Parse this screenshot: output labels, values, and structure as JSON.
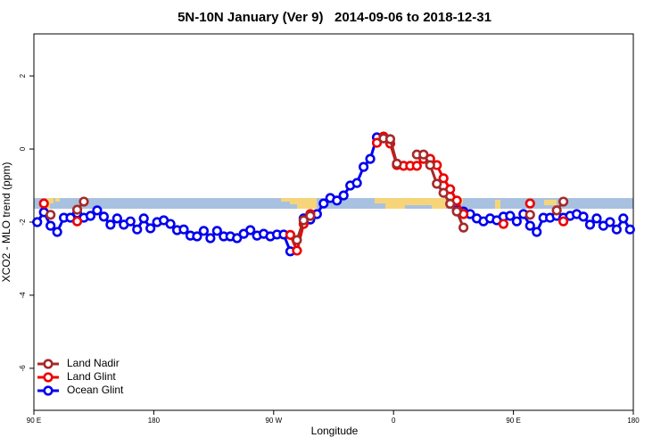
{
  "chart_data": {
    "type": "line",
    "title": "5N-10N January (Ver 9)   2014-09-06 to 2018-12-31",
    "xlabel": "Longitude",
    "ylabel": "XCO2 - MLO trend (ppm)",
    "xlim": [
      90,
      540
    ],
    "ylim": [
      -7.15,
      3.15
    ],
    "xticks": [
      {
        "value": 90,
        "label": "90 E"
      },
      180,
      {
        "value": 270,
        "label": "90 W"
      },
      {
        "value": 360,
        "label": "0"
      },
      {
        "value": 450,
        "label": "90 E"
      },
      {
        "value": 540,
        "label": "180"
      }
    ],
    "yticks": [
      -6,
      -4,
      -2,
      0,
      2
    ],
    "legend": "bottom-left",
    "x": [
      92.5,
      97.5,
      102.5,
      107.5,
      112.5,
      117.5,
      122.5,
      127.5,
      132.5,
      137.5,
      142.5,
      147.5,
      152.5,
      157.5,
      162.5,
      167.5,
      172.5,
      177.5,
      182.5,
      187.5,
      192.5,
      197.5,
      202.5,
      207.5,
      212.5,
      217.5,
      222.5,
      227.5,
      232.5,
      237.5,
      242.5,
      247.5,
      252.5,
      257.5,
      262.5,
      267.5,
      272.5,
      277.5,
      282.5,
      287.5,
      292.5,
      297.5,
      302.5,
      307.5,
      312.5,
      317.5,
      322.5,
      327.5,
      332.5,
      337.5,
      342.5,
      347.5,
      352.5,
      357.5,
      362.5,
      367.5,
      372.5,
      377.5,
      382.5,
      387.5,
      392.5,
      397.5,
      402.5,
      407.5,
      412.5,
      417.5,
      422.5,
      427.5,
      432.5,
      437.5,
      442.5,
      447.5,
      452.5,
      457.5,
      462.5,
      467.5,
      472.5,
      477.5,
      482.5,
      487.5,
      492.5,
      497.5,
      502.5,
      507.5,
      512.5,
      517.5,
      522.5,
      527.5,
      532.5,
      537.5
    ],
    "series": [
      {
        "name": "Ocean Glint",
        "color": "#0000ee",
        "values": [
          -2.0,
          -1.73,
          -2.1,
          -2.27,
          -1.88,
          -1.88,
          -1.76,
          -1.88,
          -1.83,
          -1.68,
          -1.85,
          -2.07,
          -1.9,
          -2.07,
          -1.98,
          -2.2,
          -1.9,
          -2.17,
          -2.0,
          -1.95,
          -2.05,
          -2.22,
          -2.2,
          -2.37,
          -2.39,
          -2.24,
          -2.44,
          -2.24,
          -2.39,
          -2.39,
          -2.44,
          -2.32,
          -2.22,
          -2.37,
          -2.32,
          -2.39,
          -2.34,
          -2.34,
          -2.8,
          null,
          -1.9,
          -1.93,
          -1.78,
          -1.49,
          -1.34,
          -1.41,
          -1.27,
          -1.0,
          -0.93,
          -0.49,
          -0.27,
          0.32,
          null,
          null,
          null,
          null,
          null,
          null,
          null,
          null,
          null,
          null,
          null,
          -1.68,
          -1.71,
          -1.78,
          -1.9,
          -1.98,
          -1.9,
          -1.95,
          -1.85,
          -1.83,
          -1.98,
          -1.78,
          -2.1,
          -2.27,
          -1.88,
          -1.88,
          -1.83,
          -1.88,
          -1.83,
          -1.78,
          -1.85,
          -2.07,
          -1.9,
          -2.1,
          -2.0,
          -2.2,
          -1.9,
          -2.2
        ]
      },
      {
        "name": "Land Glint",
        "color": "#ee0000",
        "values": [
          null,
          -1.49,
          null,
          null,
          null,
          null,
          -1.98,
          null,
          null,
          null,
          null,
          null,
          null,
          null,
          null,
          null,
          null,
          null,
          null,
          null,
          null,
          null,
          null,
          null,
          null,
          null,
          null,
          null,
          null,
          null,
          null,
          null,
          null,
          null,
          null,
          null,
          null,
          null,
          -2.35,
          -2.78,
          -2.05,
          -1.78,
          null,
          null,
          null,
          null,
          null,
          null,
          null,
          null,
          null,
          0.17,
          0.34,
          0.15,
          -0.44,
          -0.46,
          -0.46,
          -0.46,
          -0.27,
          -0.27,
          -0.44,
          -0.8,
          -1.1,
          -1.41,
          -1.78,
          null,
          null,
          null,
          null,
          null,
          -2.05,
          null,
          null,
          null,
          -1.49,
          null,
          null,
          null,
          null,
          -1.98,
          null,
          null,
          null,
          null,
          null,
          null,
          null,
          null,
          null,
          null
        ]
      },
      {
        "name": "Land Nadir",
        "color": "#a52a2a",
        "values": [
          null,
          null,
          -1.8,
          null,
          null,
          null,
          -1.66,
          -1.44,
          null,
          null,
          null,
          null,
          null,
          null,
          null,
          null,
          null,
          null,
          null,
          null,
          null,
          null,
          null,
          null,
          null,
          null,
          null,
          null,
          null,
          null,
          null,
          null,
          null,
          null,
          null,
          null,
          null,
          null,
          null,
          -2.49,
          -1.95,
          -1.83,
          null,
          null,
          null,
          null,
          null,
          null,
          null,
          null,
          null,
          null,
          0.29,
          0.27,
          -0.4,
          null,
          null,
          -0.15,
          -0.15,
          -0.44,
          -0.95,
          -1.2,
          -1.5,
          -1.71,
          -2.15,
          null,
          null,
          null,
          null,
          null,
          null,
          null,
          null,
          null,
          -1.8,
          null,
          null,
          null,
          -1.68,
          -1.44,
          null,
          null,
          null,
          null,
          null,
          null,
          null,
          null,
          null,
          null
        ]
      }
    ]
  }
}
